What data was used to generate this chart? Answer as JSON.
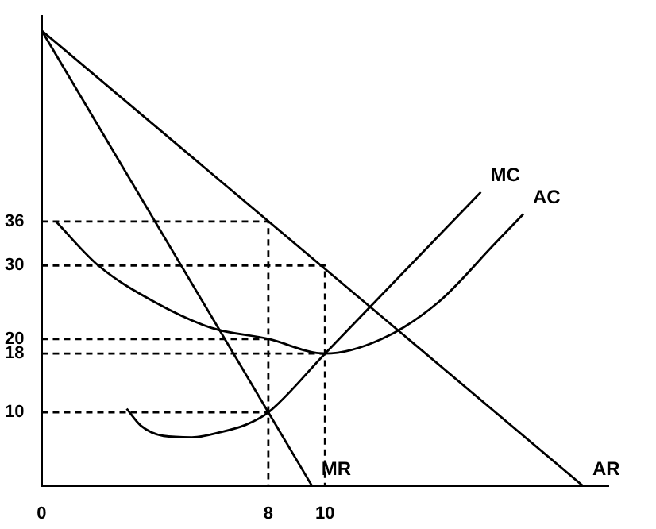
{
  "chart_data": {
    "type": "line",
    "xlim": [
      0,
      20
    ],
    "ylim": [
      0,
      64
    ],
    "xticks": [
      0,
      8,
      10
    ],
    "yticks": [
      10,
      18,
      20,
      30,
      36
    ],
    "grid": false,
    "legend": false,
    "marker": "none",
    "series": [
      {
        "name": "AR",
        "color": "#000000",
        "x": [
          0,
          19.1
        ],
        "values": [
          62,
          0
        ]
      },
      {
        "name": "MR",
        "color": "#000000",
        "x": [
          0,
          9.54
        ],
        "values": [
          62,
          0
        ]
      },
      {
        "name": "MC",
        "color": "#000000",
        "x": [
          3,
          3.5,
          4.3,
          5.3,
          6.3,
          7.2,
          8,
          10,
          15.5
        ],
        "values": [
          10.5,
          8.2,
          6.8,
          6.6,
          7.3,
          8.3,
          10,
          18,
          40
        ]
      },
      {
        "name": "AC",
        "color": "#000000",
        "x": [
          0.5,
          2,
          4,
          6,
          8,
          10,
          12,
          14,
          16,
          17
        ],
        "values": [
          36,
          30,
          25,
          21.5,
          20,
          18,
          20,
          25,
          33,
          37
        ]
      },
      {
        "color": "#000000",
        "line_style": "dashed",
        "x": [
          0,
          8,
          8
        ],
        "values": [
          36,
          36,
          0
        ]
      },
      {
        "color": "#000000",
        "line_style": "dashed",
        "x": [
          0,
          10,
          10
        ],
        "values": [
          30,
          30,
          0
        ]
      },
      {
        "color": "#000000",
        "line_style": "dashed",
        "x": [
          0,
          8
        ],
        "values": [
          20,
          20
        ]
      },
      {
        "color": "#000000",
        "line_style": "dashed",
        "x": [
          0,
          10
        ],
        "values": [
          18,
          18
        ]
      },
      {
        "color": "#000000",
        "line_style": "dashed",
        "x": [
          0,
          8
        ],
        "values": [
          10,
          10
        ]
      }
    ]
  }
}
